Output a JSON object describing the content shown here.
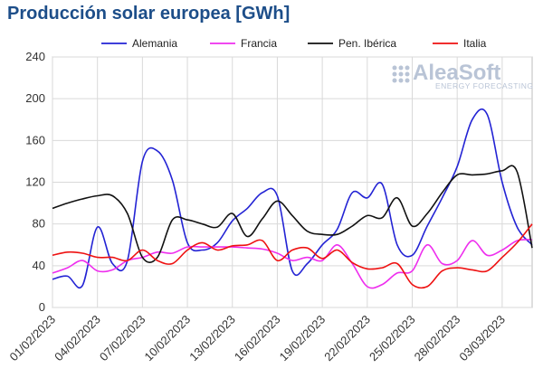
{
  "chart_data": {
    "type": "line",
    "title": "Producción solar europea [GWh]",
    "xlabel": "",
    "ylabel": "",
    "ylim": [
      0,
      240
    ],
    "yticks": [
      0,
      40,
      80,
      120,
      160,
      200,
      240
    ],
    "grid": true,
    "legend_position": "top",
    "x": [
      "01/02/2023",
      "02/02/2023",
      "03/02/2023",
      "04/02/2023",
      "05/02/2023",
      "06/02/2023",
      "07/02/2023",
      "08/02/2023",
      "09/02/2023",
      "10/02/2023",
      "11/02/2023",
      "12/02/2023",
      "13/02/2023",
      "14/02/2023",
      "15/02/2023",
      "16/02/2023",
      "17/02/2023",
      "18/02/2023",
      "19/02/2023",
      "20/02/2023",
      "21/02/2023",
      "22/02/2023",
      "23/02/2023",
      "24/02/2023",
      "25/02/2023",
      "26/02/2023",
      "27/02/2023",
      "28/02/2023",
      "01/03/2023",
      "02/03/2023",
      "03/03/2023",
      "04/03/2023",
      "05/03/2023"
    ],
    "xtick_labels": [
      "01/02/2023",
      "04/02/2023",
      "07/02/2023",
      "10/02/2023",
      "13/02/2023",
      "16/02/2023",
      "19/02/2023",
      "22/02/2023",
      "25/02/2023",
      "28/02/2023",
      "03/03/2023"
    ],
    "series": [
      {
        "name": "Alemania",
        "color": "#2323d4",
        "values": [
          27,
          30,
          21,
          77,
          42,
          45,
          140,
          150,
          122,
          62,
          55,
          62,
          83,
          95,
          110,
          107,
          35,
          42,
          60,
          75,
          110,
          105,
          118,
          60,
          50,
          78,
          105,
          135,
          180,
          185,
          120,
          77,
          60
        ]
      },
      {
        "name": "Francia",
        "color": "#ee2eee",
        "values": [
          33,
          38,
          45,
          35,
          36,
          45,
          48,
          53,
          52,
          58,
          58,
          58,
          58,
          57,
          56,
          52,
          45,
          48,
          45,
          60,
          42,
          20,
          22,
          33,
          35,
          60,
          42,
          45,
          64,
          50,
          55,
          64,
          65
        ]
      },
      {
        "name": "Pen. Ibérica",
        "color": "#111111",
        "values": [
          95,
          100,
          104,
          107,
          107,
          90,
          48,
          48,
          84,
          84,
          80,
          77,
          90,
          68,
          85,
          102,
          88,
          73,
          70,
          70,
          78,
          88,
          86,
          105,
          78,
          90,
          110,
          127,
          127,
          128,
          131,
          130,
          57
        ]
      },
      {
        "name": "Italia",
        "color": "#ee1111",
        "values": [
          50,
          53,
          52,
          48,
          48,
          45,
          55,
          45,
          42,
          55,
          62,
          55,
          59,
          60,
          64,
          45,
          55,
          57,
          47,
          55,
          43,
          37,
          38,
          42,
          22,
          20,
          35,
          38,
          36,
          35,
          48,
          62,
          80
        ]
      }
    ]
  },
  "legend": {
    "items": [
      "Alemania",
      "Francia",
      "Pen. Ibérica",
      "Italia"
    ]
  },
  "watermark": {
    "brand": "AleaSoft",
    "tagline": "ENERGY FORECASTING"
  }
}
